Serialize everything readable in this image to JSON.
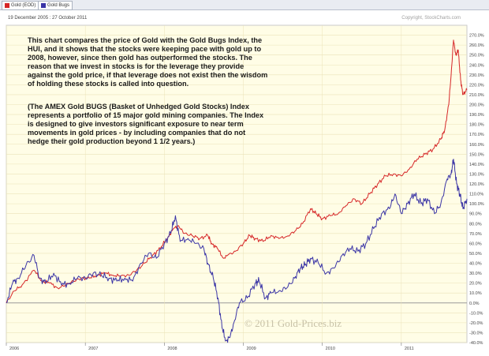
{
  "legend": [
    {
      "label": "Gold (EOD)",
      "color": "#d62728"
    },
    {
      "label": "Gold Bugs",
      "color": "#3b35a6"
    }
  ],
  "date_range": "19 December 2005 : 27 October 2011",
  "copyright_top": "Copyright, StockCharts.com",
  "annotation_1": "This chart compares the price of Gold with the Gold Bugs Index, the HUI, and it shows that the stocks were keeping pace with gold up to 2008, however, since then gold has outperformed the stocks. The reason that we invest in stocks is for the leverage they provide against the gold price, if that leverage does not exist then the wisdom of holding these stocks is called into question.",
  "annotation_2": "(The AMEX Gold BUGS (Basket of Unhedged Gold Stocks) Index represents a portfolio of 15 major gold mining companies. The Index is designed to give investors significant exposure to near term movements in gold prices - by including companies that do not hedge their gold production beyond 1 1/2 years.)",
  "watermark": "© 2011 Gold-Prices.biz",
  "colors": {
    "plot_background": "#fffde6",
    "grid": "#ebe3b8",
    "zero_line": "#999999"
  },
  "chart_data": {
    "type": "line",
    "xlim": [
      2006.0,
      2011.83
    ],
    "ylim": [
      -40,
      280
    ],
    "y_ticks": [
      -40,
      -30,
      -20,
      -10,
      0,
      10,
      20,
      30,
      40,
      50,
      60,
      70,
      80,
      90,
      100,
      110,
      120,
      130,
      140,
      150,
      160,
      170,
      180,
      190,
      200,
      210,
      220,
      230,
      240,
      250,
      260,
      270
    ],
    "y_tick_labels": [
      "-40.0%",
      "-30.0%",
      "-20.0%",
      "-10.0%",
      "0.0%",
      "10.0%",
      "20.0%",
      "30.0%",
      "40.0%",
      "50.0%",
      "60.0%",
      "70.0%",
      "80.0%",
      "90.0%",
      "100.0%",
      "110.0%",
      "120.0%",
      "130.0%",
      "140.0%",
      "150.0%",
      "160.0%",
      "170.0%",
      "180.0%",
      "190.0%",
      "200.0%",
      "210.0%",
      "220.0%",
      "230.0%",
      "240.0%",
      "250.0%",
      "260.0%",
      "270.0%"
    ],
    "x_ticks": [
      2006,
      2007,
      2008,
      2009,
      2010,
      2011
    ],
    "x_tick_labels": [
      "2006",
      "2007",
      "2008",
      "2009",
      "2010",
      "2011"
    ],
    "grid": true,
    "series": [
      {
        "name": "Gold (EOD)",
        "color": "#d62728",
        "points": [
          [
            2006.0,
            0
          ],
          [
            2006.1,
            12
          ],
          [
            2006.2,
            18
          ],
          [
            2006.35,
            33
          ],
          [
            2006.45,
            22
          ],
          [
            2006.55,
            20
          ],
          [
            2006.65,
            15
          ],
          [
            2006.75,
            18
          ],
          [
            2006.85,
            22
          ],
          [
            2006.95,
            25
          ],
          [
            2007.05,
            25
          ],
          [
            2007.15,
            28
          ],
          [
            2007.25,
            30
          ],
          [
            2007.35,
            28
          ],
          [
            2007.45,
            27
          ],
          [
            2007.55,
            28
          ],
          [
            2007.65,
            33
          ],
          [
            2007.75,
            40
          ],
          [
            2007.85,
            48
          ],
          [
            2007.95,
            55
          ],
          [
            2008.05,
            67
          ],
          [
            2008.12,
            75
          ],
          [
            2008.18,
            78
          ],
          [
            2008.25,
            70
          ],
          [
            2008.35,
            68
          ],
          [
            2008.45,
            65
          ],
          [
            2008.55,
            68
          ],
          [
            2008.6,
            60
          ],
          [
            2008.67,
            55
          ],
          [
            2008.75,
            45
          ],
          [
            2008.8,
            48
          ],
          [
            2008.9,
            52
          ],
          [
            2009.0,
            60
          ],
          [
            2009.08,
            68
          ],
          [
            2009.15,
            65
          ],
          [
            2009.25,
            62
          ],
          [
            2009.35,
            68
          ],
          [
            2009.45,
            65
          ],
          [
            2009.55,
            67
          ],
          [
            2009.65,
            72
          ],
          [
            2009.75,
            80
          ],
          [
            2009.85,
            95
          ],
          [
            2009.92,
            90
          ],
          [
            2010.0,
            85
          ],
          [
            2010.1,
            88
          ],
          [
            2010.2,
            90
          ],
          [
            2010.3,
            98
          ],
          [
            2010.4,
            105
          ],
          [
            2010.5,
            100
          ],
          [
            2010.6,
            110
          ],
          [
            2010.7,
            120
          ],
          [
            2010.8,
            128
          ],
          [
            2010.9,
            130
          ],
          [
            2011.0,
            128
          ],
          [
            2011.1,
            135
          ],
          [
            2011.2,
            145
          ],
          [
            2011.3,
            150
          ],
          [
            2011.4,
            155
          ],
          [
            2011.5,
            165
          ],
          [
            2011.55,
            175
          ],
          [
            2011.6,
            200
          ],
          [
            2011.63,
            230
          ],
          [
            2011.66,
            265
          ],
          [
            2011.69,
            250
          ],
          [
            2011.72,
            255
          ],
          [
            2011.75,
            225
          ],
          [
            2011.78,
            210
          ],
          [
            2011.83,
            215
          ]
        ]
      },
      {
        "name": "Gold Bugs",
        "color": "#3b35a6",
        "points": [
          [
            2006.0,
            0
          ],
          [
            2006.08,
            20
          ],
          [
            2006.15,
            25
          ],
          [
            2006.25,
            38
          ],
          [
            2006.35,
            48
          ],
          [
            2006.42,
            25
          ],
          [
            2006.5,
            20
          ],
          [
            2006.6,
            30
          ],
          [
            2006.7,
            18
          ],
          [
            2006.8,
            20
          ],
          [
            2006.9,
            25
          ],
          [
            2007.0,
            25
          ],
          [
            2007.1,
            30
          ],
          [
            2007.2,
            28
          ],
          [
            2007.3,
            25
          ],
          [
            2007.4,
            22
          ],
          [
            2007.5,
            25
          ],
          [
            2007.6,
            22
          ],
          [
            2007.7,
            40
          ],
          [
            2007.8,
            50
          ],
          [
            2007.9,
            45
          ],
          [
            2008.0,
            60
          ],
          [
            2008.08,
            70
          ],
          [
            2008.14,
            88
          ],
          [
            2008.2,
            62
          ],
          [
            2008.3,
            65
          ],
          [
            2008.4,
            60
          ],
          [
            2008.5,
            55
          ],
          [
            2008.55,
            40
          ],
          [
            2008.62,
            25
          ],
          [
            2008.68,
            5
          ],
          [
            2008.73,
            -25
          ],
          [
            2008.78,
            -38
          ],
          [
            2008.83,
            -35
          ],
          [
            2008.88,
            -20
          ],
          [
            2008.95,
            0
          ],
          [
            2009.05,
            5
          ],
          [
            2009.15,
            20
          ],
          [
            2009.2,
            22
          ],
          [
            2009.28,
            5
          ],
          [
            2009.35,
            10
          ],
          [
            2009.45,
            12
          ],
          [
            2009.55,
            15
          ],
          [
            2009.65,
            25
          ],
          [
            2009.72,
            35
          ],
          [
            2009.78,
            38
          ],
          [
            2009.85,
            45
          ],
          [
            2009.95,
            40
          ],
          [
            2010.05,
            30
          ],
          [
            2010.15,
            35
          ],
          [
            2010.25,
            48
          ],
          [
            2010.35,
            55
          ],
          [
            2010.45,
            52
          ],
          [
            2010.55,
            60
          ],
          [
            2010.65,
            75
          ],
          [
            2010.75,
            90
          ],
          [
            2010.85,
            95
          ],
          [
            2010.92,
            110
          ],
          [
            2011.0,
            90
          ],
          [
            2011.08,
            100
          ],
          [
            2011.16,
            110
          ],
          [
            2011.25,
            100
          ],
          [
            2011.33,
            105
          ],
          [
            2011.42,
            90
          ],
          [
            2011.5,
            100
          ],
          [
            2011.58,
            125
          ],
          [
            2011.63,
            130
          ],
          [
            2011.66,
            145
          ],
          [
            2011.7,
            120
          ],
          [
            2011.74,
            110
          ],
          [
            2011.78,
            95
          ],
          [
            2011.83,
            105
          ]
        ]
      }
    ]
  }
}
